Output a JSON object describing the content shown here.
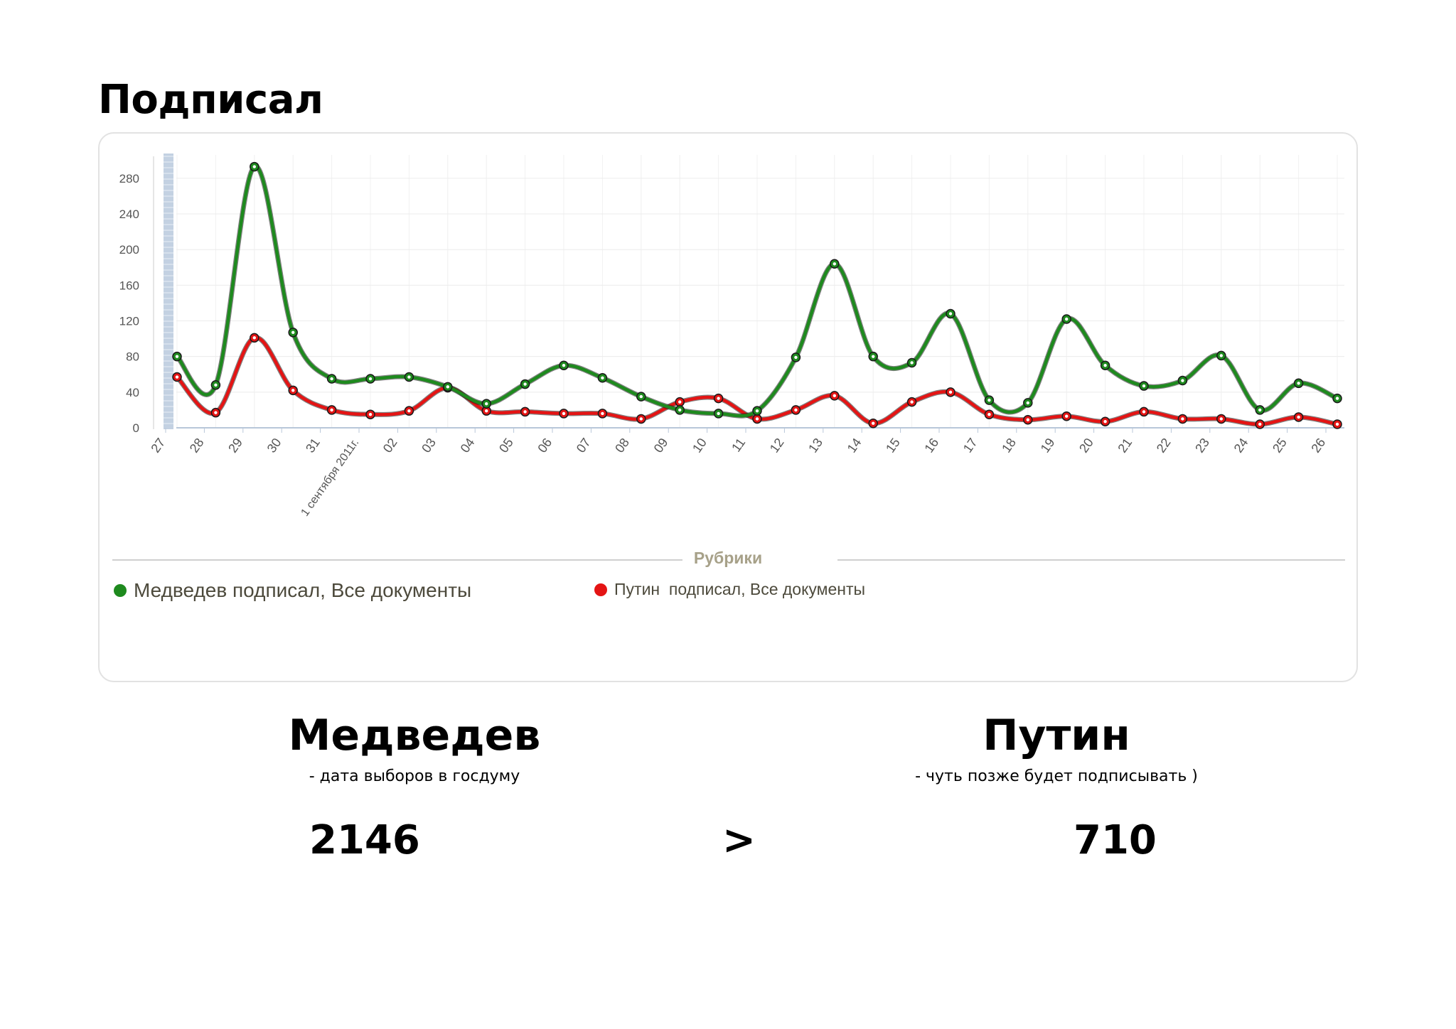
{
  "page": {
    "title": "Подписал"
  },
  "chart_data": {
    "type": "line",
    "categories": [
      "27",
      "28",
      "29",
      "30",
      "31",
      "1 сентября 2011г.",
      "02",
      "03",
      "04",
      "05",
      "06",
      "07",
      "08",
      "09",
      "10",
      "11",
      "12",
      "13",
      "14",
      "15",
      "16",
      "17",
      "18",
      "19",
      "20",
      "21",
      "22",
      "23",
      "24",
      "25",
      "26"
    ],
    "ylim": [
      0,
      300
    ],
    "yticks": [
      0,
      40,
      80,
      120,
      160,
      200,
      240,
      280
    ],
    "grid": true,
    "legend_title": "Рубрики",
    "legend_position": "bottom",
    "series": [
      {
        "name": "Медведев подписал, Все документы",
        "color": "#1e8a1e",
        "values": [
          80,
          48,
          293,
          107,
          55,
          55,
          57,
          46,
          27,
          49,
          70,
          56,
          35,
          20,
          16,
          19,
          79,
          184,
          80,
          73,
          128,
          31,
          28,
          122,
          70,
          47,
          53,
          81,
          20,
          50,
          33
        ]
      },
      {
        "name": "Путин  подписал, Все документы",
        "color": "#e41414",
        "values": [
          57,
          17,
          101,
          42,
          20,
          15,
          19,
          45,
          19,
          18,
          16,
          16,
          10,
          29,
          33,
          10,
          20,
          36,
          5,
          29,
          40,
          15,
          9,
          13,
          7,
          18,
          10,
          10,
          4,
          12,
          4
        ]
      }
    ]
  },
  "comparison": {
    "left": {
      "name": "Медведев",
      "note": "- дата выборов в госдуму",
      "total": "2146"
    },
    "operator": ">",
    "right": {
      "name": "Путин",
      "note": "- чуть позже будет подписывать )",
      "total": "710"
    }
  }
}
